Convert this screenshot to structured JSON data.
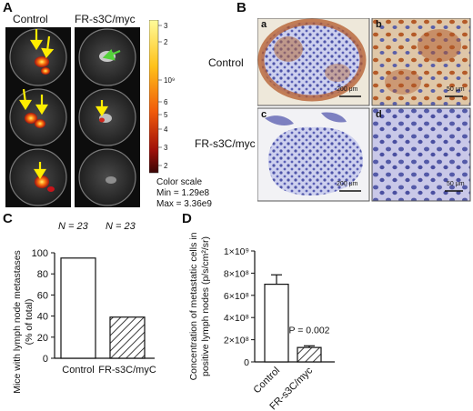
{
  "panels": {
    "A": {
      "letter": "A",
      "col_labels": [
        "Control",
        "FR-s3C/myc"
      ],
      "colorbar": {
        "tick_labels": [
          "3",
          "2",
          "10⁹",
          "6",
          "5",
          "4",
          "3",
          "2"
        ],
        "title": "Color scale",
        "min_label": "Min = 1.29e8",
        "max_label": "Max = 3.36e9"
      }
    },
    "B": {
      "letter": "B",
      "row_labels": [
        "Control",
        "FR-s3C/myc"
      ],
      "subpanel_labels": [
        "a",
        "b",
        "c",
        "d"
      ],
      "scale_bars": [
        "200 μm",
        "50 μm",
        "200 μm",
        "50 μm"
      ]
    },
    "C": {
      "letter": "C",
      "n_labels": [
        "N = 23",
        "N = 23"
      ]
    },
    "D": {
      "letter": "D",
      "p_label": "P = 0.002"
    }
  },
  "chart_data": [
    {
      "type": "bar",
      "panel": "C",
      "categories": [
        "Control",
        "FR-s3C/myC"
      ],
      "values": [
        95,
        39
      ],
      "ylabel": "Mice with lymph node metastases (% of total)",
      "ylim": [
        0,
        100
      ],
      "yticks": [
        "0",
        "20",
        "40",
        "60",
        "80",
        "100"
      ],
      "bar_fills": [
        "open",
        "hatched"
      ]
    },
    {
      "type": "bar",
      "panel": "D",
      "categories": [
        "Control",
        "FR-s3C/myc"
      ],
      "values": [
        700000000,
        130000000
      ],
      "errors": [
        85000000,
        15000000
      ],
      "ylabel": "Concentration of metastatic cells in positive lymph nodes (p/s/cm²/sr)",
      "ylim": [
        0,
        1000000000
      ],
      "yticks": [
        "0",
        "2×10⁸",
        "4×10⁸",
        "6×10⁸",
        "8×10⁸",
        "1×10⁹"
      ],
      "bar_fills": [
        "open",
        "hatched"
      ]
    }
  ]
}
